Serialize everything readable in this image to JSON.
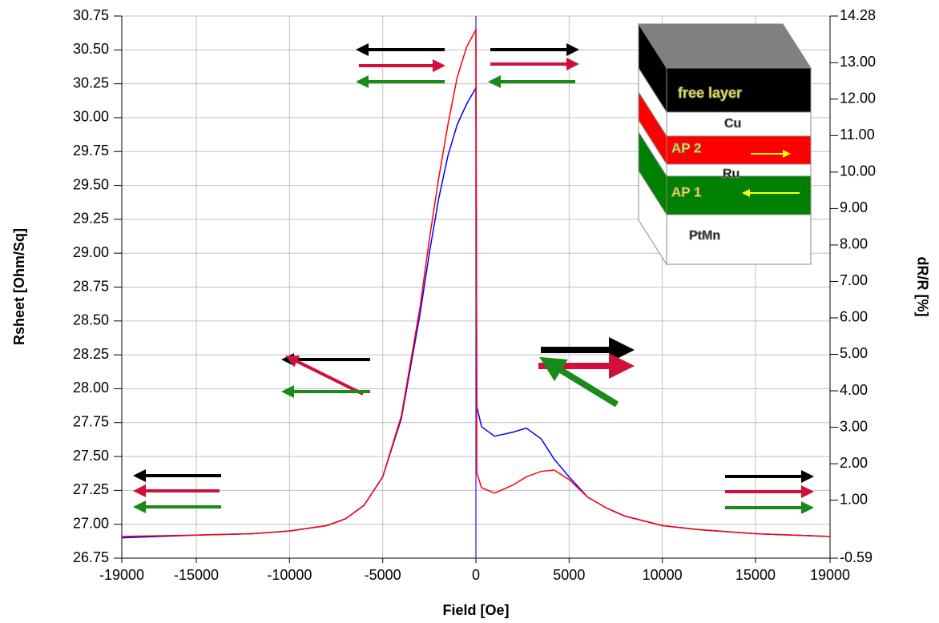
{
  "chart_data": {
    "type": "line",
    "xlabel": "Field [Oe]",
    "ylabel": "Rsheet [Ohm/Sq]",
    "y2label": "dR/R [%]",
    "x": [
      -19000,
      -15000,
      -12000,
      -10000,
      -8000,
      -7000,
      -6000,
      -5000,
      -4000,
      -3000,
      -2500,
      -2000,
      -1500,
      -1000,
      -500,
      0,
      50,
      300,
      1000,
      2000,
      2700,
      3500,
      4200,
      5000,
      6000,
      7000,
      8000,
      10000,
      12000,
      15000,
      19000
    ],
    "series": [
      {
        "color": "#0000ff",
        "values": [
          26.9,
          26.92,
          26.93,
          26.95,
          26.99,
          27.04,
          27.14,
          27.35,
          27.78,
          28.55,
          29.0,
          29.4,
          29.72,
          29.95,
          30.1,
          30.22,
          27.87,
          27.72,
          27.65,
          27.68,
          27.71,
          27.63,
          27.48,
          27.35,
          27.2,
          27.12,
          27.06,
          26.99,
          26.96,
          26.93,
          26.91
        ]
      },
      {
        "color": "#ff0000",
        "values": [
          26.91,
          26.92,
          26.93,
          26.95,
          26.99,
          27.04,
          27.14,
          27.35,
          27.8,
          28.6,
          29.1,
          29.55,
          29.95,
          30.3,
          30.52,
          30.65,
          27.38,
          27.27,
          27.23,
          27.29,
          27.35,
          27.39,
          27.4,
          27.33,
          27.2,
          27.12,
          27.06,
          26.99,
          26.96,
          26.93,
          26.91
        ]
      }
    ],
    "xlim": [
      -19000,
      19000
    ],
    "xticks": [
      -19000,
      -15000,
      -10000,
      -5000,
      0,
      5000,
      10000,
      15000,
      19000
    ],
    "ylim": [
      26.75,
      30.75
    ],
    "yticks": [
      26.75,
      {
        "value": 27,
        "label": "27.00"
      },
      27.25,
      {
        "value": 27.5,
        "label": "27.50"
      },
      27.75,
      {
        "value": 28,
        "label": "28.00"
      },
      28.25,
      {
        "value": 28.5,
        "label": "28.50"
      },
      28.75,
      {
        "value": 29,
        "label": "29.00"
      },
      29.25,
      {
        "value": 29.5,
        "label": "29.50"
      },
      29.75,
      {
        "value": 30,
        "label": "30.00"
      },
      30.25,
      {
        "value": 30.5,
        "label": "30.50"
      },
      30.75
    ],
    "y2lim": [
      -0.59,
      14.28
    ],
    "y2ticks": [
      -0.59,
      {
        "value": 1,
        "label": "1.00"
      },
      {
        "value": 2,
        "label": "2.00"
      },
      {
        "value": 3,
        "label": "3.00"
      },
      {
        "value": 4,
        "label": "4.00"
      },
      {
        "value": 5,
        "label": "5.00"
      },
      {
        "value": 6,
        "label": "6.00"
      },
      {
        "value": 7,
        "label": "7.00"
      },
      {
        "value": 8,
        "label": "8.00"
      },
      {
        "value": 9,
        "label": "9.00"
      },
      {
        "value": 10,
        "label": "10.00"
      },
      {
        "value": 11,
        "label": "11.00"
      },
      {
        "value": 12,
        "label": "12.00"
      },
      {
        "value": 13,
        "label": "13.00"
      },
      14.28
    ],
    "grid": true,
    "annotations": [
      "free layer",
      "Cu",
      "AP 2",
      "Ru",
      "AP 1",
      "PtMn"
    ]
  }
}
